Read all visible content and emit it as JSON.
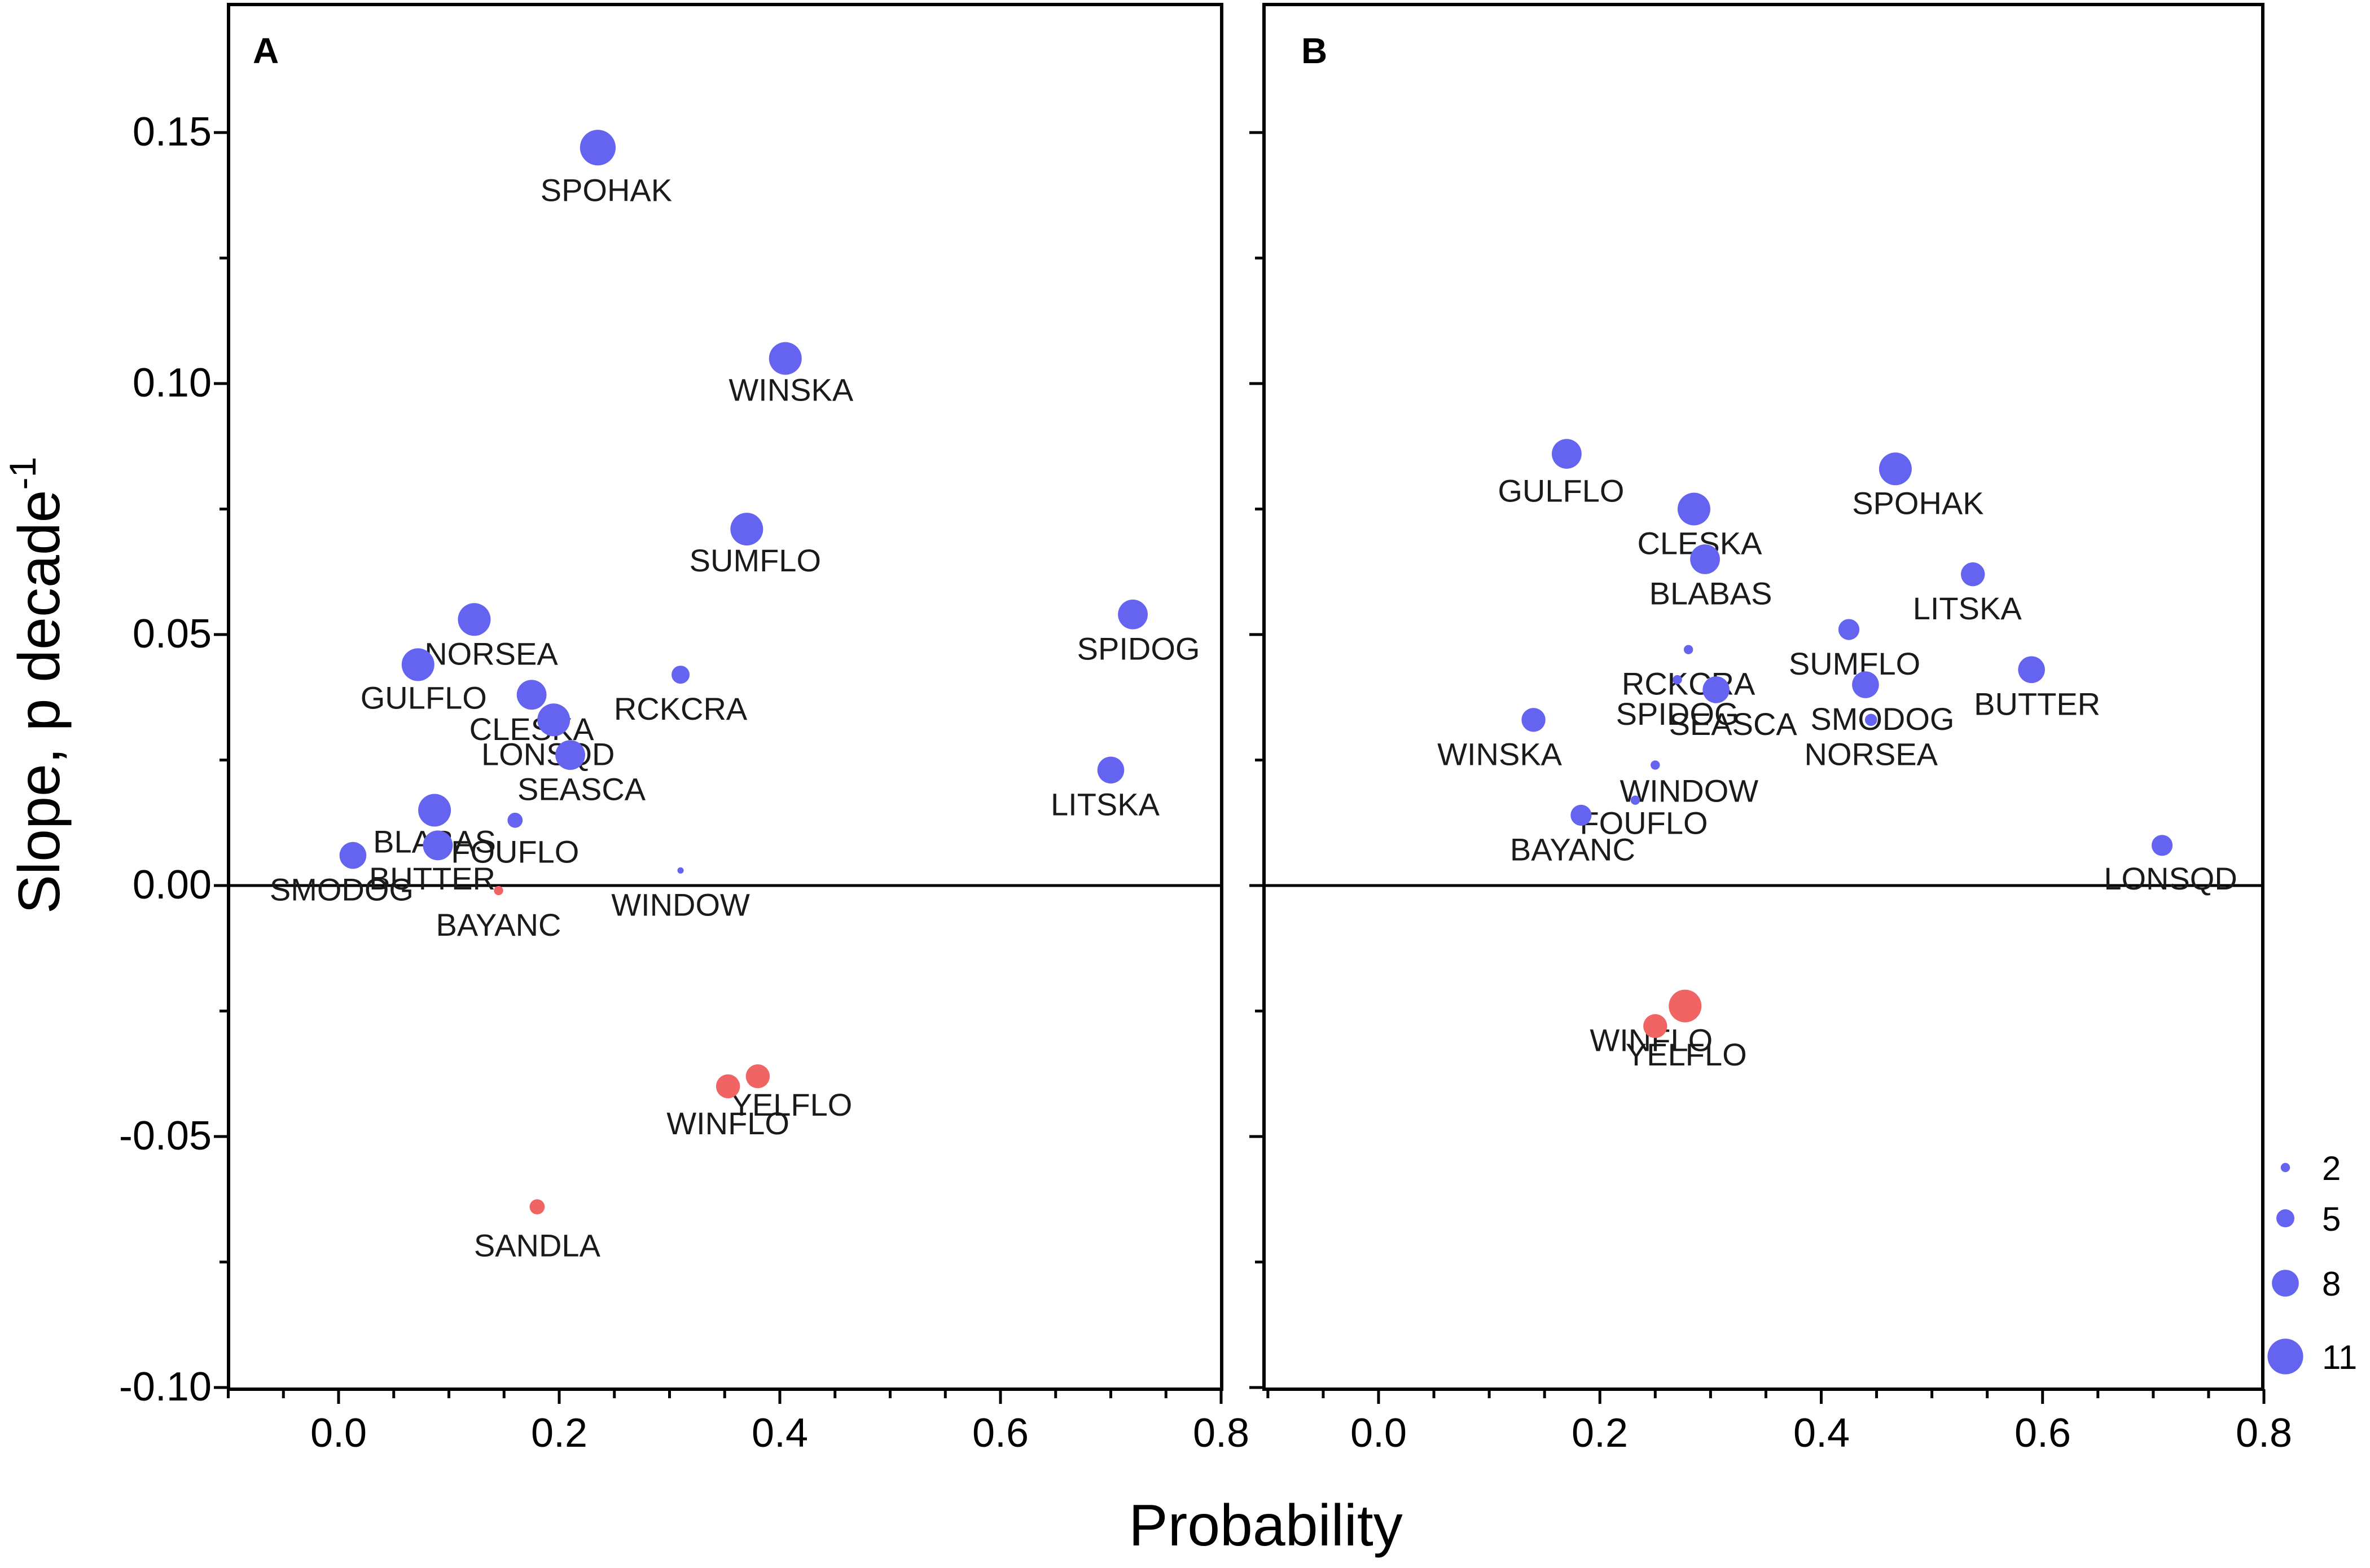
{
  "chart_data": {
    "type": "scatter",
    "xlabel": "Probability",
    "ylabel": "Slope, p decade",
    "ylabel_superscript": "-1",
    "xlim": [
      -0.1,
      0.8
    ],
    "ylim": [
      -0.1,
      0.175
    ],
    "x_ticks": [
      "0.0",
      "0.2",
      "0.4",
      "0.6",
      "0.8"
    ],
    "y_ticks": [
      "0.15",
      "0.10",
      "0.05",
      "0.00",
      "-0.05",
      "-0.10"
    ],
    "colors": {
      "positive": "#6464f0",
      "negative": "#f06464"
    },
    "legend": {
      "title": "",
      "placement": "bottom-right",
      "entries": [
        {
          "label": "2",
          "size": 2
        },
        {
          "label": "5",
          "size": 5
        },
        {
          "label": "8",
          "size": 8
        },
        {
          "label": "11",
          "size": 11
        }
      ]
    },
    "panels": [
      {
        "label": "A",
        "points": [
          {
            "name": "SPOHAK",
            "x": 0.235,
            "y": 0.147,
            "size": 11
          },
          {
            "name": "WINSKA",
            "x": 0.405,
            "y": 0.105,
            "size": 10
          },
          {
            "name": "SUMFLO",
            "x": 0.37,
            "y": 0.071,
            "size": 10
          },
          {
            "name": "SPIDOG",
            "x": 0.72,
            "y": 0.054,
            "size": 9
          },
          {
            "name": "NORSEA",
            "x": 0.123,
            "y": 0.053,
            "size": 10
          },
          {
            "name": "GULFLO",
            "x": 0.072,
            "y": 0.044,
            "size": 10
          },
          {
            "name": "RCKCRA",
            "x": 0.31,
            "y": 0.042,
            "size": 5
          },
          {
            "name": "CLESKA",
            "x": 0.175,
            "y": 0.038,
            "size": 9
          },
          {
            "name": "LONSQD",
            "x": 0.195,
            "y": 0.033,
            "size": 10
          },
          {
            "name": "SEASCA",
            "x": 0.21,
            "y": 0.026,
            "size": 9
          },
          {
            "name": "LITSKA",
            "x": 0.7,
            "y": 0.023,
            "size": 8
          },
          {
            "name": "BLABAS",
            "x": 0.087,
            "y": 0.015,
            "size": 10
          },
          {
            "name": "FOUFLO",
            "x": 0.16,
            "y": 0.013,
            "size": 4
          },
          {
            "name": "BUTTER",
            "x": 0.09,
            "y": 0.008,
            "size": 9
          },
          {
            "name": "SMODOG",
            "x": 0.013,
            "y": 0.006,
            "size": 8
          },
          {
            "name": "WINDOW",
            "x": 0.31,
            "y": 0.003,
            "size": 1
          },
          {
            "name": "BAYANC",
            "x": 0.145,
            "y": -0.001,
            "size": 2
          },
          {
            "name": "YELFLO",
            "x": 0.38,
            "y": -0.038,
            "size": 7
          },
          {
            "name": "WINFLO",
            "x": 0.353,
            "y": -0.04,
            "size": 7
          },
          {
            "name": "SANDLA",
            "x": 0.18,
            "y": -0.064,
            "size": 4
          }
        ]
      },
      {
        "label": "B",
        "points": [
          {
            "name": "GULFLO",
            "x": 0.17,
            "y": 0.086,
            "size": 9
          },
          {
            "name": "SPOHAK",
            "x": 0.467,
            "y": 0.083,
            "size": 10
          },
          {
            "name": "CLESKA",
            "x": 0.285,
            "y": 0.075,
            "size": 10
          },
          {
            "name": "BLABAS",
            "x": 0.295,
            "y": 0.065,
            "size": 9
          },
          {
            "name": "LITSKA",
            "x": 0.537,
            "y": 0.062,
            "size": 7
          },
          {
            "name": "SUMFLO",
            "x": 0.425,
            "y": 0.051,
            "size": 6
          },
          {
            "name": "BUTTER",
            "x": 0.59,
            "y": 0.043,
            "size": 8
          },
          {
            "name": "RCKCRA",
            "x": 0.28,
            "y": 0.047,
            "size": 2
          },
          {
            "name": "SPIDOG",
            "x": 0.27,
            "y": 0.041,
            "size": 2
          },
          {
            "name": "SEASCA",
            "x": 0.305,
            "y": 0.039,
            "size": 8
          },
          {
            "name": "SMODOG",
            "x": 0.44,
            "y": 0.04,
            "size": 8
          },
          {
            "name": "NORSEA",
            "x": 0.445,
            "y": 0.033,
            "size": 3
          },
          {
            "name": "WINSKA",
            "x": 0.14,
            "y": 0.033,
            "size": 7
          },
          {
            "name": "WINDOW",
            "x": 0.25,
            "y": 0.024,
            "size": 2
          },
          {
            "name": "FOUFLO",
            "x": 0.232,
            "y": 0.017,
            "size": 2
          },
          {
            "name": "BAYANC",
            "x": 0.183,
            "y": 0.014,
            "size": 6
          },
          {
            "name": "LONSQD",
            "x": 0.708,
            "y": 0.008,
            "size": 6
          },
          {
            "name": "WINFLO",
            "x": 0.277,
            "y": -0.024,
            "size": 10
          },
          {
            "name": "YELFLO",
            "x": 0.25,
            "y": -0.028,
            "size": 7
          }
        ]
      }
    ]
  }
}
